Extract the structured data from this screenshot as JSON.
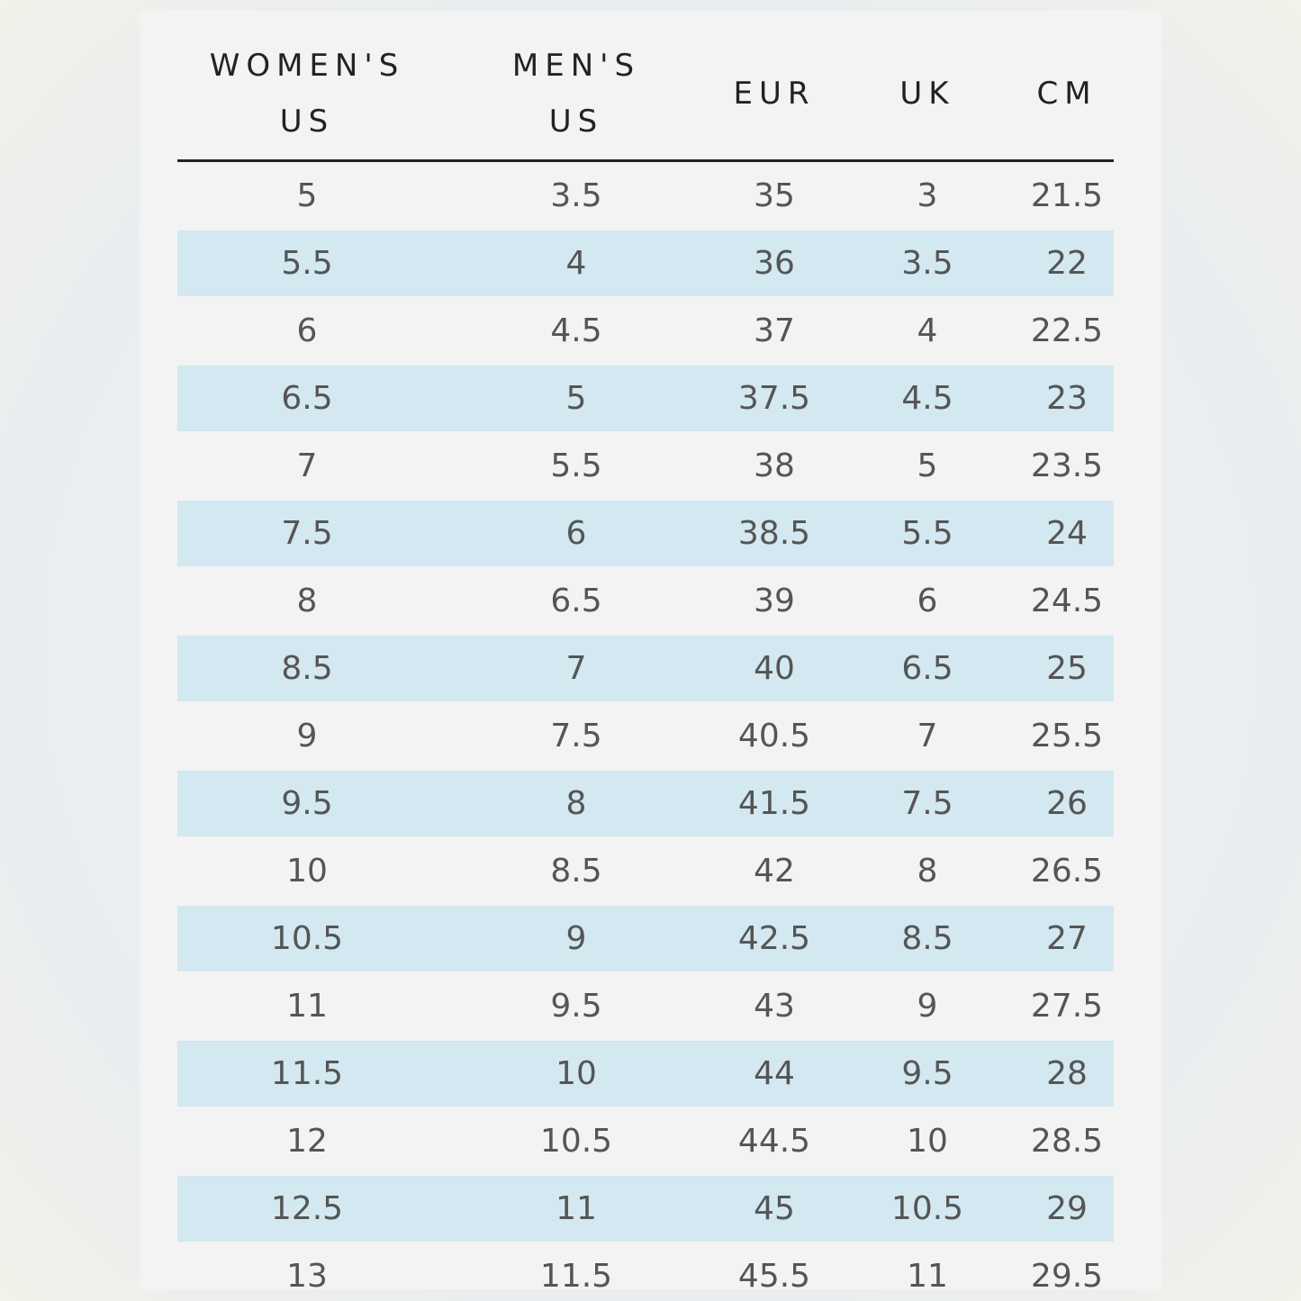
{
  "table": {
    "headers": [
      [
        "WOMEN'S",
        "US"
      ],
      [
        "MEN'S",
        "US"
      ],
      [
        "EUR"
      ],
      [
        "UK"
      ],
      [
        "CM"
      ]
    ],
    "rows": [
      [
        5,
        3.5,
        35,
        3,
        21.5
      ],
      [
        5.5,
        4,
        36,
        3.5,
        22
      ],
      [
        6,
        4.5,
        37,
        4,
        22.5
      ],
      [
        6.5,
        5,
        37.5,
        4.5,
        23
      ],
      [
        7,
        5.5,
        38,
        5,
        23.5
      ],
      [
        7.5,
        6,
        38.5,
        5.5,
        24
      ],
      [
        8,
        6.5,
        39,
        6,
        24.5
      ],
      [
        8.5,
        7,
        40,
        6.5,
        25
      ],
      [
        9,
        7.5,
        40.5,
        7,
        25.5
      ],
      [
        9.5,
        8,
        41.5,
        7.5,
        26
      ],
      [
        10,
        8.5,
        42,
        8,
        26.5
      ],
      [
        10.5,
        9,
        42.5,
        8.5,
        27
      ],
      [
        11,
        9.5,
        43,
        9,
        27.5
      ],
      [
        11.5,
        10,
        44,
        9.5,
        28
      ],
      [
        12,
        10.5,
        44.5,
        10,
        28.5
      ],
      [
        12.5,
        11,
        45,
        10.5,
        29
      ],
      [
        13,
        11.5,
        45.5,
        11,
        29.5
      ]
    ]
  }
}
